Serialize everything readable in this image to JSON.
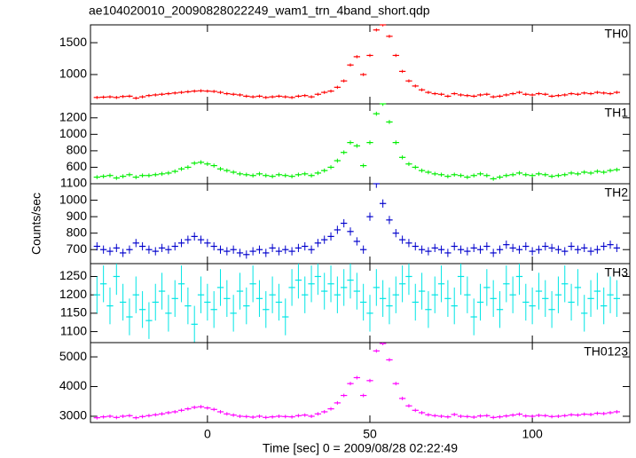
{
  "chart_data": {
    "type": "step",
    "title": "ae104020010_20090828022249_wam1_trn_4band_short.qdp",
    "xlabel": "Time [sec] 0 = 2009/08/28 02:22:49",
    "ylabel": "Counts/sec",
    "xlim": [
      -36,
      130
    ],
    "xticks": [
      0,
      50,
      100
    ],
    "x": [
      -34,
      -32,
      -30,
      -28,
      -26,
      -24,
      -22,
      -20,
      -18,
      -16,
      -14,
      -12,
      -10,
      -8,
      -6,
      -4,
      -2,
      0,
      2,
      4,
      6,
      8,
      10,
      12,
      14,
      16,
      18,
      20,
      22,
      24,
      26,
      28,
      30,
      32,
      34,
      36,
      38,
      40,
      42,
      44,
      46,
      48,
      50,
      52,
      54,
      56,
      58,
      60,
      62,
      64,
      66,
      68,
      70,
      72,
      74,
      76,
      78,
      80,
      82,
      84,
      86,
      88,
      90,
      92,
      94,
      96,
      98,
      100,
      102,
      104,
      106,
      108,
      110,
      112,
      114,
      116,
      118,
      120,
      122,
      124,
      126
    ],
    "panels": [
      {
        "name": "TH0",
        "color": "#ff0000",
        "error": 25,
        "ylim": [
          540,
          1780
        ],
        "yticks": [
          1000,
          1500
        ],
        "values": [
          640,
          645,
          650,
          640,
          655,
          660,
          630,
          650,
          670,
          680,
          690,
          700,
          710,
          720,
          730,
          740,
          745,
          740,
          735,
          720,
          700,
          690,
          680,
          660,
          650,
          660,
          640,
          650,
          660,
          650,
          640,
          660,
          670,
          650,
          690,
          720,
          740,
          800,
          900,
          1150,
          1280,
          1000,
          1300,
          1700,
          1780,
          1600,
          1300,
          1050,
          900,
          820,
          760,
          720,
          700,
          690,
          660,
          700,
          680,
          670,
          660,
          680,
          690,
          650,
          660,
          680,
          700,
          720,
          690,
          680,
          700,
          690,
          660,
          670,
          680,
          700,
          690,
          710,
          700,
          720,
          710,
          700,
          720
        ]
      },
      {
        "name": "TH1",
        "color": "#00ee00",
        "error": 25,
        "ylim": [
          400,
          1370
        ],
        "yticks": [
          600,
          800,
          1000,
          1200
        ],
        "values": [
          480,
          490,
          500,
          470,
          490,
          510,
          480,
          500,
          500,
          510,
          520,
          530,
          550,
          580,
          600,
          650,
          660,
          640,
          620,
          580,
          560,
          540,
          520,
          510,
          500,
          520,
          500,
          490,
          510,
          500,
          490,
          510,
          520,
          500,
          530,
          560,
          600,
          680,
          780,
          900,
          860,
          620,
          900,
          1250,
          1370,
          1150,
          900,
          720,
          640,
          600,
          560,
          540,
          520,
          510,
          490,
          510,
          500,
          480,
          500,
          520,
          500,
          460,
          480,
          500,
          510,
          530,
          510,
          500,
          520,
          510,
          490,
          500,
          510,
          530,
          520,
          540,
          530,
          550,
          540,
          560,
          570
        ]
      },
      {
        "name": "TH2",
        "color": "#0000cc",
        "error": 25,
        "ylim": [
          615,
          1100
        ],
        "yticks": [
          700,
          800,
          900,
          1000,
          1100
        ],
        "values": [
          720,
          700,
          690,
          710,
          680,
          700,
          740,
          720,
          700,
          690,
          710,
          700,
          720,
          740,
          760,
          780,
          760,
          740,
          720,
          700,
          690,
          700,
          680,
          670,
          690,
          700,
          680,
          710,
          690,
          700,
          690,
          710,
          720,
          700,
          740,
          760,
          780,
          820,
          860,
          810,
          750,
          700,
          900,
          1100,
          980,
          880,
          800,
          760,
          740,
          720,
          700,
          690,
          710,
          700,
          680,
          720,
          700,
          690,
          710,
          700,
          720,
          680,
          700,
          730,
          710,
          700,
          720,
          690,
          700,
          720,
          710,
          700,
          690,
          720,
          700,
          710,
          690,
          700,
          720,
          730,
          710
        ]
      },
      {
        "name": "TH3",
        "color": "#00e5e5",
        "error": 50,
        "ylim": [
          1070,
          1285
        ],
        "yticks": [
          1100,
          1150,
          1200,
          1250
        ],
        "values": [
          1200,
          1230,
          1170,
          1250,
          1180,
          1140,
          1200,
          1160,
          1130,
          1180,
          1210,
          1150,
          1190,
          1230,
          1170,
          1120,
          1200,
          1180,
          1160,
          1220,
          1190,
          1150,
          1210,
          1170,
          1230,
          1190,
          1160,
          1200,
          1180,
          1140,
          1220,
          1240,
          1200,
          1230,
          1250,
          1210,
          1230,
          1200,
          1220,
          1240,
          1210,
          1180,
          1150,
          1220,
          1190,
          1170,
          1200,
          1230,
          1250,
          1180,
          1210,
          1160,
          1200,
          1230,
          1190,
          1170,
          1250,
          1200,
          1140,
          1180,
          1220,
          1190,
          1160,
          1230,
          1200,
          1250,
          1180,
          1170,
          1210,
          1190,
          1160,
          1200,
          1230,
          1180,
          1220,
          1150,
          1190,
          1210,
          1170,
          1200,
          1190
        ]
      },
      {
        "name": "TH0123",
        "color": "#ff00ff",
        "error": 60,
        "ylim": [
          2790,
          5480
        ],
        "yticks": [
          3000,
          4000,
          5000
        ],
        "values": [
          2950,
          2980,
          3000,
          2960,
          3000,
          3020,
          2950,
          2990,
          3020,
          3050,
          3080,
          3120,
          3150,
          3200,
          3250,
          3300,
          3320,
          3280,
          3230,
          3150,
          3080,
          3040,
          3000,
          2990,
          2970,
          3000,
          2960,
          2980,
          3000,
          2990,
          2980,
          3020,
          3040,
          3000,
          3080,
          3150,
          3250,
          3450,
          3700,
          4100,
          4300,
          3700,
          4200,
          5200,
          5450,
          4900,
          4100,
          3600,
          3350,
          3200,
          3120,
          3050,
          3020,
          3000,
          2980,
          3060,
          3000,
          2990,
          2970,
          3010,
          3020,
          2960,
          2980,
          3010,
          3040,
          3070,
          3010,
          3000,
          3030,
          3020,
          2990,
          3000,
          3020,
          3050,
          3040,
          3070,
          3060,
          3100,
          3090,
          3120,
          3150
        ]
      }
    ]
  }
}
